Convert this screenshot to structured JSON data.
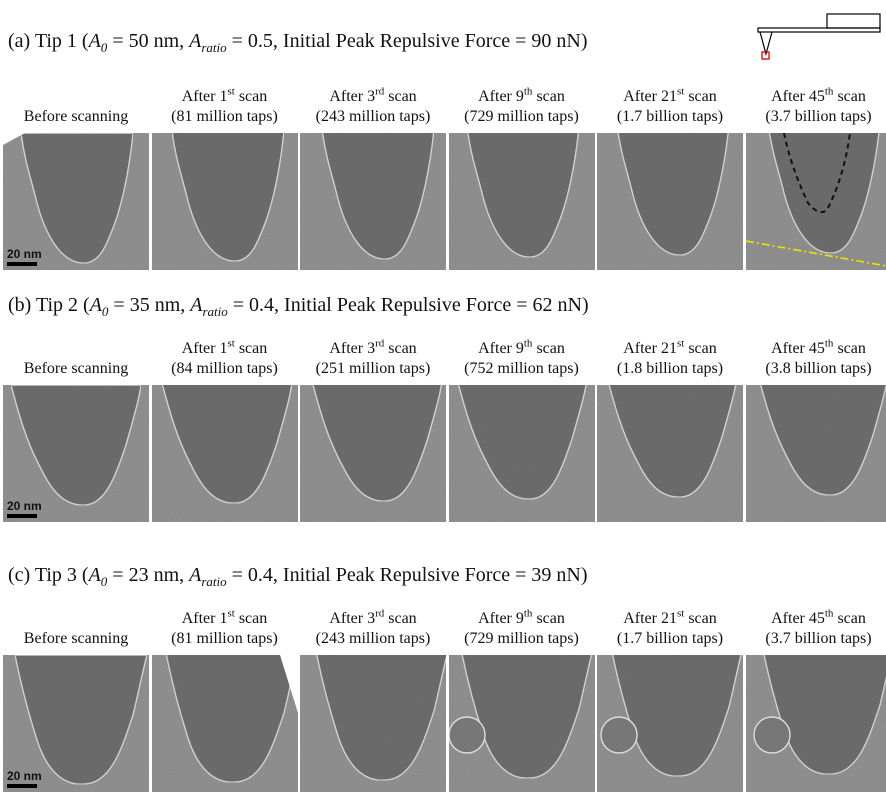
{
  "panels": [
    {
      "title": {
        "label": "(a) Tip 1 (",
        "a0_symbol": "A",
        "a0_subscript": "0",
        "a0_text": " = 50 nm, ",
        "ratio_symbol": "A",
        "ratio_subscript": "ratio",
        "ratio_text": " = 0.5, Initial Peak Repulsive Force = 90 nN)"
      },
      "columns": [
        {
          "heading": "Before scanning"
        },
        {
          "heading": "After 1",
          "superscript": "st",
          "heading_end": " scan",
          "taps": "(81 million taps)"
        },
        {
          "heading": "After 3",
          "superscript": "rd",
          "heading_end": " scan",
          "taps": "(243 million taps)"
        },
        {
          "heading": "After 9",
          "superscript": "th",
          "heading_end": " scan",
          "taps": "(729 million taps)"
        },
        {
          "heading": "After 21",
          "superscript": "st",
          "heading_end": " scan",
          "taps": "(1.7 billion taps)"
        },
        {
          "heading": "After 45",
          "superscript": "th",
          "heading_end": " scan",
          "taps": "(3.7 billion taps)"
        }
      ],
      "scale_bar": "20 nm"
    },
    {
      "title": {
        "label": "(b) Tip 2 (",
        "a0_symbol": "A",
        "a0_subscript": "0",
        "a0_text": " = 35 nm, ",
        "ratio_symbol": "A",
        "ratio_subscript": "ratio",
        "ratio_text": " = 0.4, Initial Peak Repulsive Force = 62 nN)"
      },
      "columns": [
        {
          "heading": "Before scanning"
        },
        {
          "heading": "After 1",
          "superscript": "st",
          "heading_end": " scan",
          "taps": "(84 million taps)"
        },
        {
          "heading": "After 3",
          "superscript": "rd",
          "heading_end": " scan",
          "taps": "(251 million taps)"
        },
        {
          "heading": "After 9",
          "superscript": "th",
          "heading_end": " scan",
          "taps": "(752 million taps)"
        },
        {
          "heading": "After 21",
          "superscript": "st",
          "heading_end": " scan",
          "taps": "(1.8 billion taps)"
        },
        {
          "heading": "After 45",
          "superscript": "th",
          "heading_end": " scan",
          "taps": "(3.8 billion taps)"
        }
      ],
      "scale_bar": "20 nm"
    },
    {
      "title": {
        "label": "(c) Tip 3 (",
        "a0_symbol": "A",
        "a0_subscript": "0",
        "a0_text": " = 23 nm, ",
        "ratio_symbol": "A",
        "ratio_subscript": "ratio",
        "ratio_text": " = 0.4, Initial Peak Repulsive Force = 39 nN)"
      },
      "columns": [
        {
          "heading": "Before scanning"
        },
        {
          "heading": "After 1",
          "superscript": "st",
          "heading_end": " scan",
          "taps": "(81 million taps)"
        },
        {
          "heading": "After 3",
          "superscript": "rd",
          "heading_end": " scan",
          "taps": "(243 million taps)"
        },
        {
          "heading": "After 9",
          "superscript": "th",
          "heading_end": " scan",
          "taps": "(729 million taps)"
        },
        {
          "heading": "After 21",
          "superscript": "st",
          "heading_end": " scan",
          "taps": "(1.7 billion taps)"
        },
        {
          "heading": "After 45",
          "superscript": "th",
          "heading_end": " scan",
          "taps": "(3.7 billion taps)"
        }
      ],
      "scale_bar": "20 nm"
    }
  ]
}
